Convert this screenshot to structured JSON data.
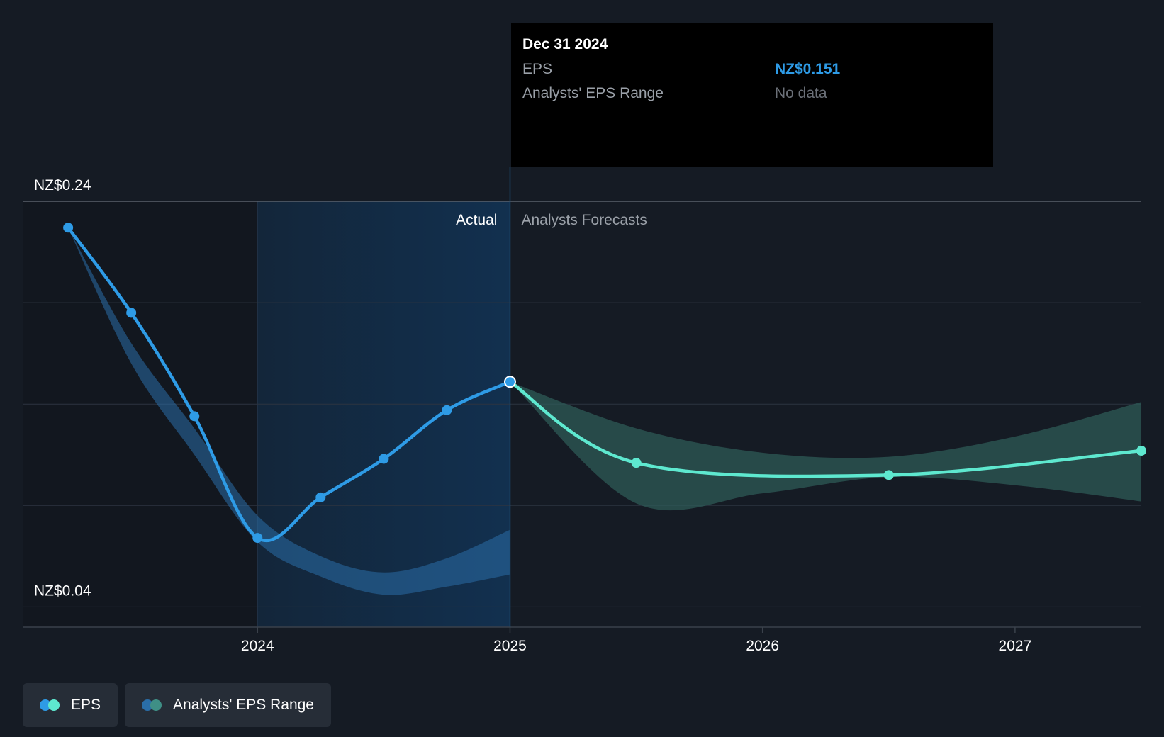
{
  "tooltip": {
    "date": "Dec 31 2024",
    "rows": [
      {
        "label": "EPS",
        "value": "NZ$0.151"
      },
      {
        "label": "Analysts' EPS Range",
        "value": "No data"
      }
    ]
  },
  "chart_data": {
    "type": "line",
    "ytick_labels": [
      {
        "text": "NZ$0.24",
        "value": 0.24
      },
      {
        "text": "NZ$0.04",
        "value": 0.04
      }
    ],
    "ylim": [
      0.03,
      0.24
    ],
    "xlim": [
      2023.07,
      2027.5
    ],
    "xticks": [
      {
        "label": "2024",
        "value": 2024.0
      },
      {
        "label": "2025",
        "value": 2025.0
      },
      {
        "label": "2026",
        "value": 2026.0
      },
      {
        "label": "2027",
        "value": 2027.0
      }
    ],
    "region_labels": {
      "actual": "Actual",
      "forecast": "Analysts Forecasts"
    },
    "divider_x": 2025.0,
    "past_shade_start": 2024.0,
    "series": [
      {
        "name": "EPS",
        "kind": "actual",
        "color": "#2e9be6",
        "points": [
          {
            "x": 2023.25,
            "y": 0.227
          },
          {
            "x": 2023.5,
            "y": 0.185
          },
          {
            "x": 2023.75,
            "y": 0.134
          },
          {
            "x": 2024.0,
            "y": 0.074
          },
          {
            "x": 2024.25,
            "y": 0.094
          },
          {
            "x": 2024.5,
            "y": 0.113
          },
          {
            "x": 2024.75,
            "y": 0.137
          },
          {
            "x": 2025.0,
            "y": 0.151
          }
        ]
      },
      {
        "name": "EPS",
        "kind": "forecast",
        "color": "#5ee8cf",
        "points": [
          {
            "x": 2025.0,
            "y": 0.151
          },
          {
            "x": 2025.5,
            "y": 0.111
          },
          {
            "x": 2026.5,
            "y": 0.105
          },
          {
            "x": 2027.5,
            "y": 0.117
          }
        ]
      }
    ],
    "ranges": [
      {
        "name": "Analysts' EPS Range",
        "kind": "actual",
        "color": "#2a6ea8",
        "high": [
          [
            2023.25,
            0.227
          ],
          [
            2023.5,
            0.17
          ],
          [
            2023.75,
            0.128
          ],
          [
            2024.0,
            0.085
          ],
          [
            2024.25,
            0.065
          ],
          [
            2024.5,
            0.057
          ],
          [
            2024.75,
            0.064
          ],
          [
            2025.0,
            0.078
          ]
        ],
        "low": [
          [
            2023.25,
            0.227
          ],
          [
            2023.5,
            0.16
          ],
          [
            2023.75,
            0.115
          ],
          [
            2024.0,
            0.072
          ],
          [
            2024.25,
            0.055
          ],
          [
            2024.5,
            0.046
          ],
          [
            2024.75,
            0.05
          ],
          [
            2025.0,
            0.056
          ]
        ]
      },
      {
        "name": "Analysts' EPS Range",
        "kind": "forecast",
        "color": "#2f5e5a",
        "high": [
          [
            2025.0,
            0.151
          ],
          [
            2025.5,
            0.128
          ],
          [
            2026.0,
            0.116
          ],
          [
            2026.5,
            0.114
          ],
          [
            2027.0,
            0.124
          ],
          [
            2027.5,
            0.141
          ]
        ],
        "low": [
          [
            2025.0,
            0.151
          ],
          [
            2025.5,
            0.091
          ],
          [
            2026.0,
            0.096
          ],
          [
            2026.5,
            0.104
          ],
          [
            2027.0,
            0.1
          ],
          [
            2027.5,
            0.092
          ]
        ]
      }
    ],
    "legend": [
      {
        "label": "EPS",
        "colors": [
          "#2e9be6",
          "#5ee8cf"
        ]
      },
      {
        "label": "Analysts' EPS Range",
        "colors": [
          "#2a6ea8",
          "#3f8f86"
        ]
      }
    ]
  }
}
